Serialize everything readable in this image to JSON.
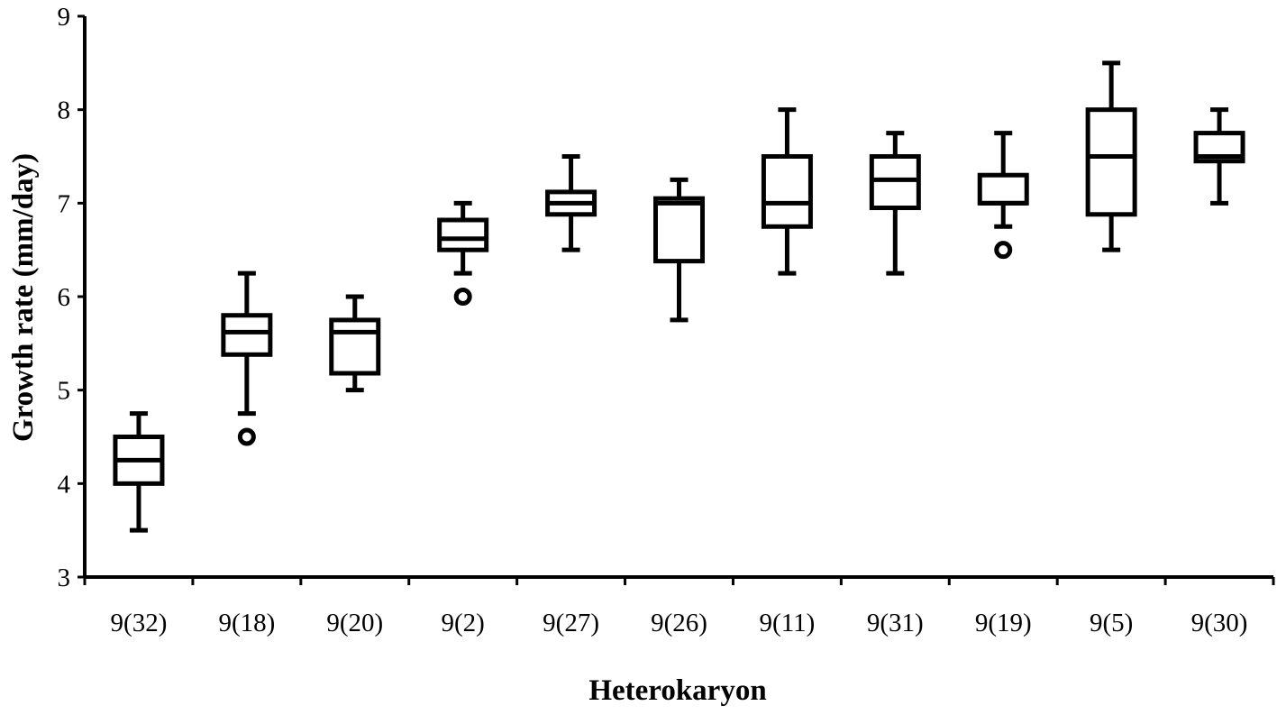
{
  "chart_data": {
    "type": "boxplot",
    "title": "",
    "xlabel": "Heterokaryon",
    "ylabel": "Growth rate (mm/day)",
    "ylim": [
      3,
      9
    ],
    "yticks": [
      "3",
      "4",
      "5",
      "6",
      "7",
      "8",
      "9"
    ],
    "grid": false,
    "legend": "none",
    "categories": [
      "9(32)",
      "9(18)",
      "9(20)",
      "9(2)",
      "9(27)",
      "9(26)",
      "9(11)",
      "9(31)",
      "9(19)",
      "9(5)",
      "9(30)"
    ],
    "boxes": [
      {
        "min": 3.5,
        "q1": 4.0,
        "median": 4.25,
        "q3": 4.5,
        "max": 4.75,
        "outliers": []
      },
      {
        "min": 4.75,
        "q1": 5.38,
        "median": 5.62,
        "q3": 5.8,
        "max": 6.25,
        "outliers": [
          4.5
        ]
      },
      {
        "min": 5.0,
        "q1": 5.18,
        "median": 5.62,
        "q3": 5.75,
        "max": 6.0,
        "outliers": []
      },
      {
        "min": 6.25,
        "q1": 6.5,
        "median": 6.62,
        "q3": 6.82,
        "max": 7.0,
        "outliers": [
          6.0
        ]
      },
      {
        "min": 6.5,
        "q1": 6.88,
        "median": 7.0,
        "q3": 7.12,
        "max": 7.5,
        "outliers": []
      },
      {
        "min": 5.75,
        "q1": 6.38,
        "median": 7.0,
        "q3": 7.05,
        "max": 7.25,
        "outliers": []
      },
      {
        "min": 6.25,
        "q1": 6.75,
        "median": 7.0,
        "q3": 7.5,
        "max": 8.0,
        "outliers": []
      },
      {
        "min": 6.25,
        "q1": 6.95,
        "median": 7.25,
        "q3": 7.5,
        "max": 7.75,
        "outliers": []
      },
      {
        "min": 6.75,
        "q1": 7.0,
        "median": 7.0,
        "q3": 7.3,
        "max": 7.75,
        "outliers": [
          6.5
        ]
      },
      {
        "min": 6.5,
        "q1": 6.88,
        "median": 7.5,
        "q3": 8.0,
        "max": 8.5,
        "outliers": []
      },
      {
        "min": 7.0,
        "q1": 7.45,
        "median": 7.5,
        "q3": 7.75,
        "max": 8.0,
        "outliers": []
      }
    ]
  }
}
